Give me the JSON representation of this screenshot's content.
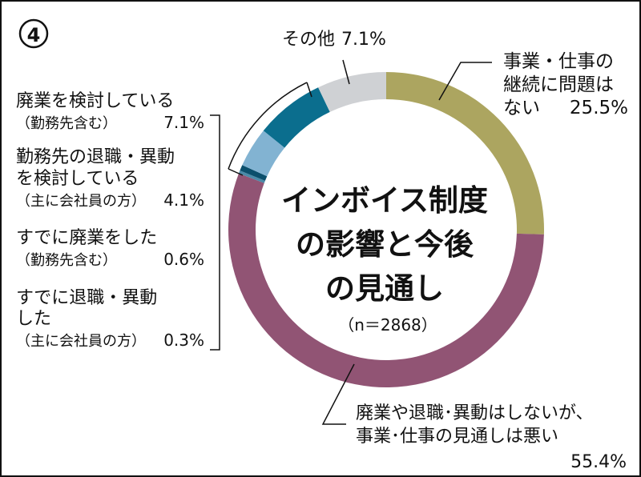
{
  "figure_number": "④",
  "center_title": [
    "インボイス制度",
    "の影響と今後",
    "の見通し"
  ],
  "sample_size": "（n＝2868）",
  "chart_data": {
    "type": "pie",
    "style": "donut",
    "title": "インボイス制度の影響と今後の見通し",
    "n": 2868,
    "unit": "%",
    "slices": [
      {
        "label": [
          "事業・仕事の",
          "継続に問題は",
          "ない"
        ],
        "value": 25.5,
        "value_text": "25.5%",
        "color": "#aca560"
      },
      {
        "label": [
          "廃業や退職･異動はしないが、",
          "事業･仕事の見通しは悪い"
        ],
        "value": 55.4,
        "value_text": "55.4%",
        "color": "#915474"
      },
      {
        "label": [
          "すでに退職・異動",
          "した",
          "（主に会社員の方）"
        ],
        "value": 0.3,
        "value_text": "0.3%",
        "color": "#4a8aa8"
      },
      {
        "label": [
          "すでに廃業をした",
          "（勤務先含む）"
        ],
        "value": 0.6,
        "value_text": "0.6%",
        "color": "#0b4f6c"
      },
      {
        "label": [
          "勤務先の退職・異動",
          "を検討している",
          "（主に会社員の方）"
        ],
        "value": 4.1,
        "value_text": "4.1%",
        "color": "#82b3d2"
      },
      {
        "label": [
          "廃業を検討している",
          "（勤務先含む）"
        ],
        "value": 7.1,
        "value_text": "7.1%",
        "color": "#0b6e8e"
      },
      {
        "label": [
          "その他"
        ],
        "value": 7.1,
        "value_text": "7.1%",
        "color": "#cfd1d4"
      }
    ]
  }
}
